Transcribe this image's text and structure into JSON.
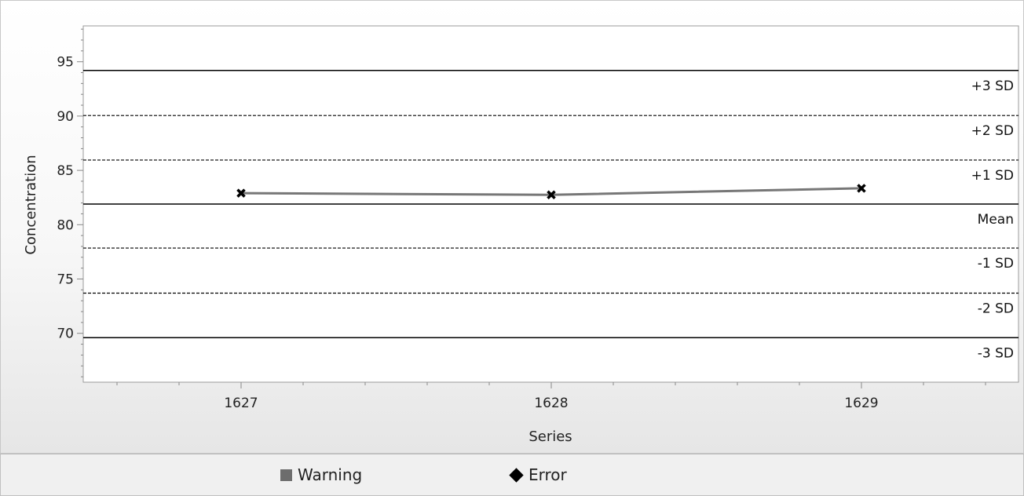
{
  "chart_data": {
    "type": "line",
    "xlabel": "Series",
    "ylabel": "Concentration",
    "categories": [
      "1627",
      "1628",
      "1629"
    ],
    "ylim": [
      65.5,
      98.3
    ],
    "y_ticks": [
      70,
      75,
      80,
      85,
      90,
      95
    ],
    "y_tick_labels": [
      "70",
      "75",
      "80",
      "85",
      "90",
      "95"
    ],
    "series": [
      {
        "values": [
          82.9,
          82.75,
          83.35
        ],
        "color": "#777777",
        "marker": "x"
      }
    ],
    "reference_lines": [
      {
        "label": "+3 SD",
        "value": 94.2,
        "style": "solid"
      },
      {
        "label": "+2 SD",
        "value": 90.05,
        "style": "dashed"
      },
      {
        "label": "+1 SD",
        "value": 85.95,
        "style": "dashed"
      },
      {
        "label": "Mean",
        "value": 81.9,
        "style": "solid"
      },
      {
        "label": "-1 SD",
        "value": 77.85,
        "style": "dashed"
      },
      {
        "label": "-2 SD",
        "value": 73.7,
        "style": "dashed"
      },
      {
        "label": "-3 SD",
        "value": 69.6,
        "style": "solid"
      }
    ],
    "grid": false
  },
  "legend": {
    "items": [
      {
        "label": "Warning",
        "color": "#6d6d6d",
        "shape": "square"
      },
      {
        "label": "Error",
        "color": "#000000",
        "shape": "diamond"
      }
    ]
  }
}
